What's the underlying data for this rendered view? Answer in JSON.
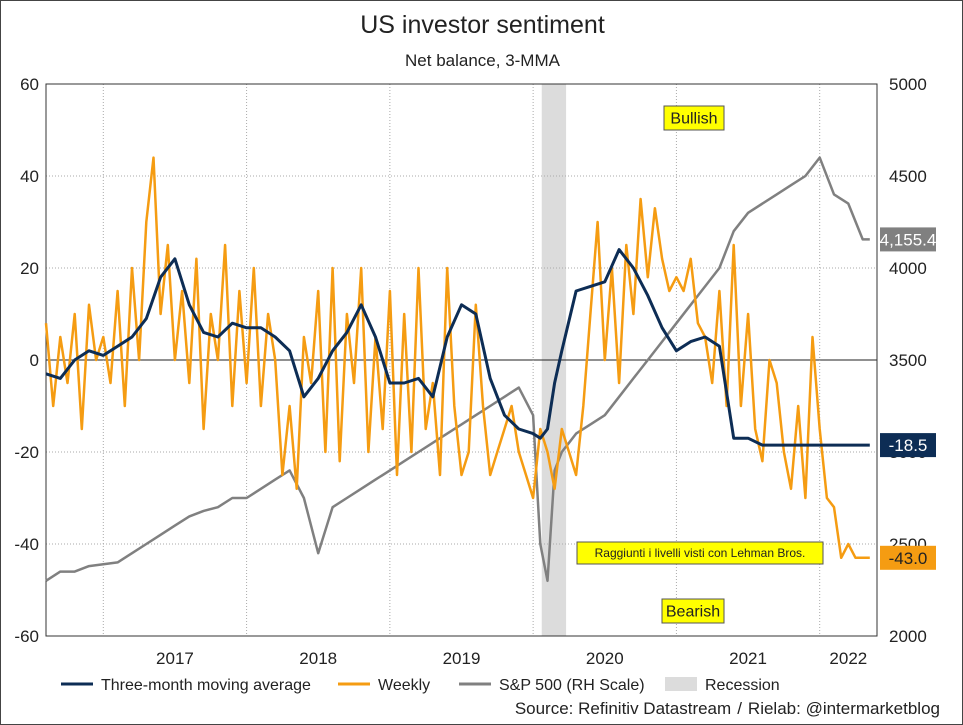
{
  "title": "US investor sentiment",
  "subtitle": "Net balance, 3-MMA",
  "source": {
    "left": "Source: Refinitiv Datastream",
    "separator": "/",
    "right": "Rielab: @intermarketblog"
  },
  "chart_data": {
    "type": "line",
    "title": "US investor sentiment",
    "subtitle": "Net balance, 3-MMA",
    "x_ticks": [
      "2017",
      "2018",
      "2019",
      "2020",
      "2021",
      "2022"
    ],
    "x_range": [
      2016.6,
      2022.4
    ],
    "left_axis": {
      "range": [
        -60,
        60
      ],
      "ticks": [
        "60",
        "40",
        "20",
        "0",
        "-20",
        "-40",
        "-60"
      ]
    },
    "right_axis": {
      "range": [
        2000,
        5000
      ],
      "ticks": [
        "5000",
        "4500",
        "4000",
        "3500",
        "3000",
        "2500",
        "2000"
      ]
    },
    "grid": true,
    "legend_position": "bottom",
    "recession": {
      "name": "Recession",
      "start": 2020.06,
      "end": 2020.23,
      "color": "#dcdcdc"
    },
    "series": [
      {
        "name": "Three-month moving average",
        "axis": "left",
        "color": "#0d2d55",
        "x": [
          2016.6,
          2016.7,
          2016.8,
          2016.9,
          2017.0,
          2017.1,
          2017.2,
          2017.3,
          2017.4,
          2017.5,
          2017.6,
          2017.7,
          2017.8,
          2017.9,
          2018.0,
          2018.1,
          2018.2,
          2018.3,
          2018.4,
          2018.5,
          2018.6,
          2018.7,
          2018.8,
          2018.9,
          2019.0,
          2019.1,
          2019.2,
          2019.3,
          2019.4,
          2019.5,
          2019.6,
          2019.7,
          2019.8,
          2019.9,
          2020.0,
          2020.05,
          2020.1,
          2020.15,
          2020.2,
          2020.3,
          2020.4,
          2020.5,
          2020.6,
          2020.7,
          2020.8,
          2020.9,
          2021.0,
          2021.1,
          2021.2,
          2021.3,
          2021.4,
          2021.5,
          2021.6,
          2021.7,
          2021.8,
          2021.9,
          2022.0,
          2022.1,
          2022.2,
          2022.3,
          2022.35
        ],
        "values": [
          -3,
          -4,
          0,
          2,
          1,
          3,
          5,
          9,
          18,
          22,
          12,
          6,
          5,
          8,
          7,
          7,
          5,
          2,
          -8,
          -4,
          2,
          6,
          12,
          5,
          -5,
          -5,
          -4,
          -8,
          5,
          12,
          10,
          -4,
          -12,
          -15,
          -16,
          -17,
          -15,
          -5,
          2,
          15,
          16,
          17,
          24,
          20,
          14,
          7,
          2,
          4,
          5,
          3,
          -17,
          -17,
          -18.5,
          -18.5,
          -18.5,
          -18.5,
          -18.5,
          -18.5,
          -18.5,
          -18.5,
          -18.5
        ]
      },
      {
        "name": "Weekly",
        "axis": "left",
        "color": "#f59c12",
        "x": [
          2016.6,
          2016.65,
          2016.7,
          2016.75,
          2016.8,
          2016.85,
          2016.9,
          2016.95,
          2017.0,
          2017.05,
          2017.1,
          2017.15,
          2017.2,
          2017.25,
          2017.3,
          2017.35,
          2017.4,
          2017.45,
          2017.5,
          2017.55,
          2017.6,
          2017.65,
          2017.7,
          2017.75,
          2017.8,
          2017.85,
          2017.9,
          2017.95,
          2018.0,
          2018.05,
          2018.1,
          2018.15,
          2018.2,
          2018.25,
          2018.3,
          2018.35,
          2018.4,
          2018.45,
          2018.5,
          2018.55,
          2018.6,
          2018.65,
          2018.7,
          2018.75,
          2018.8,
          2018.85,
          2018.9,
          2018.95,
          2019.0,
          2019.05,
          2019.1,
          2019.15,
          2019.2,
          2019.25,
          2019.3,
          2019.35,
          2019.4,
          2019.45,
          2019.5,
          2019.55,
          2019.6,
          2019.65,
          2019.7,
          2019.75,
          2019.8,
          2019.85,
          2019.9,
          2019.95,
          2020.0,
          2020.05,
          2020.1,
          2020.15,
          2020.2,
          2020.25,
          2020.3,
          2020.35,
          2020.4,
          2020.45,
          2020.5,
          2020.55,
          2020.6,
          2020.65,
          2020.7,
          2020.75,
          2020.8,
          2020.85,
          2020.9,
          2020.95,
          2021.0,
          2021.05,
          2021.1,
          2021.15,
          2021.2,
          2021.25,
          2021.3,
          2021.35,
          2021.4,
          2021.45,
          2021.5,
          2021.55,
          2021.6,
          2021.65,
          2021.7,
          2021.75,
          2021.8,
          2021.85,
          2021.9,
          2021.95,
          2022.0,
          2022.05,
          2022.1,
          2022.15,
          2022.2,
          2022.25,
          2022.3,
          2022.35
        ],
        "values": [
          8,
          -10,
          5,
          -5,
          10,
          -15,
          12,
          0,
          5,
          -5,
          15,
          -10,
          20,
          0,
          30,
          44,
          10,
          25,
          0,
          15,
          -5,
          22,
          -15,
          10,
          0,
          25,
          -10,
          15,
          -5,
          20,
          -10,
          10,
          0,
          -25,
          -10,
          -28,
          5,
          -5,
          15,
          -20,
          20,
          -22,
          10,
          -5,
          20,
          -20,
          5,
          -15,
          15,
          -25,
          10,
          -20,
          20,
          -15,
          -5,
          -25,
          20,
          -10,
          -25,
          -20,
          12,
          -10,
          -25,
          -20,
          -15,
          -10,
          -20,
          -25,
          -30,
          -15,
          -20,
          -28,
          -15,
          -20,
          -25,
          -10,
          10,
          30,
          0,
          20,
          -5,
          25,
          10,
          35,
          18,
          33,
          22,
          15,
          18,
          15,
          22,
          8,
          5,
          -5,
          15,
          -10,
          25,
          -10,
          10,
          -15,
          -22,
          0,
          -5,
          -20,
          -28,
          -10,
          -30,
          5,
          -15,
          -30,
          -32,
          -43,
          -40,
          -43,
          -43,
          -43
        ]
      },
      {
        "name": "S&P 500 (RH Scale)",
        "axis": "right",
        "color": "#808080",
        "x": [
          2016.6,
          2016.7,
          2016.8,
          2016.9,
          2017.0,
          2017.1,
          2017.2,
          2017.3,
          2017.4,
          2017.5,
          2017.6,
          2017.7,
          2017.8,
          2017.9,
          2018.0,
          2018.1,
          2018.2,
          2018.3,
          2018.4,
          2018.5,
          2018.6,
          2018.7,
          2018.8,
          2018.9,
          2019.0,
          2019.1,
          2019.2,
          2019.3,
          2019.4,
          2019.5,
          2019.6,
          2019.7,
          2019.8,
          2019.9,
          2020.0,
          2020.05,
          2020.1,
          2020.15,
          2020.2,
          2020.25,
          2020.3,
          2020.4,
          2020.5,
          2020.6,
          2020.7,
          2020.8,
          2020.9,
          2021.0,
          2021.1,
          2021.2,
          2021.3,
          2021.4,
          2021.5,
          2021.6,
          2021.7,
          2021.8,
          2021.9,
          2022.0,
          2022.1,
          2022.2,
          2022.3,
          2022.35
        ],
        "values": [
          2300,
          2350,
          2350,
          2380,
          2390,
          2400,
          2450,
          2500,
          2550,
          2600,
          2650,
          2680,
          2700,
          2750,
          2750,
          2800,
          2850,
          2900,
          2750,
          2450,
          2700,
          2750,
          2800,
          2850,
          2900,
          2950,
          3000,
          3050,
          3100,
          3150,
          3200,
          3250,
          3300,
          3350,
          3200,
          2500,
          2300,
          2900,
          3000,
          3050,
          3100,
          3150,
          3200,
          3300,
          3400,
          3500,
          3600,
          3700,
          3800,
          3900,
          4000,
          4200,
          4300,
          4350,
          4400,
          4450,
          4500,
          4600,
          4400,
          4350,
          4155.4,
          4155.4
        ]
      }
    ],
    "annotations": {
      "bullish": "Bullish",
      "bearish": "Bearish",
      "note": "Raggiunti i livelli visti con Lehman Bros."
    },
    "end_labels": {
      "sp500": "4,155.4",
      "three_month": "-18.5",
      "weekly": "-43.0"
    }
  }
}
